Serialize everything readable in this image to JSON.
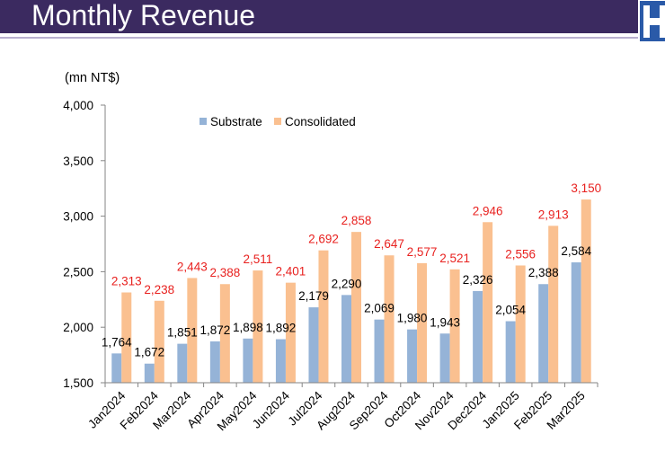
{
  "slide": {
    "title": "Monthly Revenue",
    "header_color": "#3b2a60",
    "divider_color": "#b9b0cf",
    "logo_color": "#2a5aa8"
  },
  "chart_data": {
    "type": "bar",
    "ylabel": "(mn NT$)",
    "categories": [
      "Jan2024",
      "Feb2024",
      "Mar2024",
      "Apr2024",
      "May2024",
      "Jun2024",
      "Jul2024",
      "Aug2024",
      "Sep2024",
      "Oct2024",
      "Nov2024",
      "Dec2024",
      "Jan2025",
      "Feb2025",
      "Mar2025"
    ],
    "series": [
      {
        "name": "Substrate",
        "color": "#95b3d7",
        "label_color": "#000000",
        "values": [
          1764,
          1672,
          1851,
          1872,
          1898,
          1892,
          2179,
          2290,
          2069,
          1980,
          1943,
          2326,
          2054,
          2388,
          2584
        ],
        "labels": [
          "1,764",
          "1,672",
          "1,851",
          "1,872",
          "1,898",
          "1,892",
          "2,179",
          "2,290",
          "2,069",
          "1,980",
          "1,943",
          "2,326",
          "2,054",
          "2,388",
          "2,584"
        ]
      },
      {
        "name": "Consolidated",
        "color": "#fac090",
        "label_color": "#e8211f",
        "values": [
          2313,
          2238,
          2443,
          2388,
          2511,
          2401,
          2692,
          2858,
          2647,
          2577,
          2521,
          2946,
          2556,
          2913,
          3150
        ],
        "labels": [
          "2,313",
          "2,238",
          "2,443",
          "2,388",
          "2,511",
          "2,401",
          "2,692",
          "2,858",
          "2,647",
          "2,577",
          "2,521",
          "2,946",
          "2,556",
          "2,913",
          "3,150"
        ]
      }
    ],
    "ylim": [
      1500,
      4000
    ],
    "yticks": [
      1500,
      2000,
      2500,
      3000,
      3500,
      4000
    ],
    "ytick_labels": [
      "1,500",
      "2,000",
      "2,500",
      "3,000",
      "3,500",
      "4,000"
    ],
    "grid": false,
    "legend": "top"
  }
}
